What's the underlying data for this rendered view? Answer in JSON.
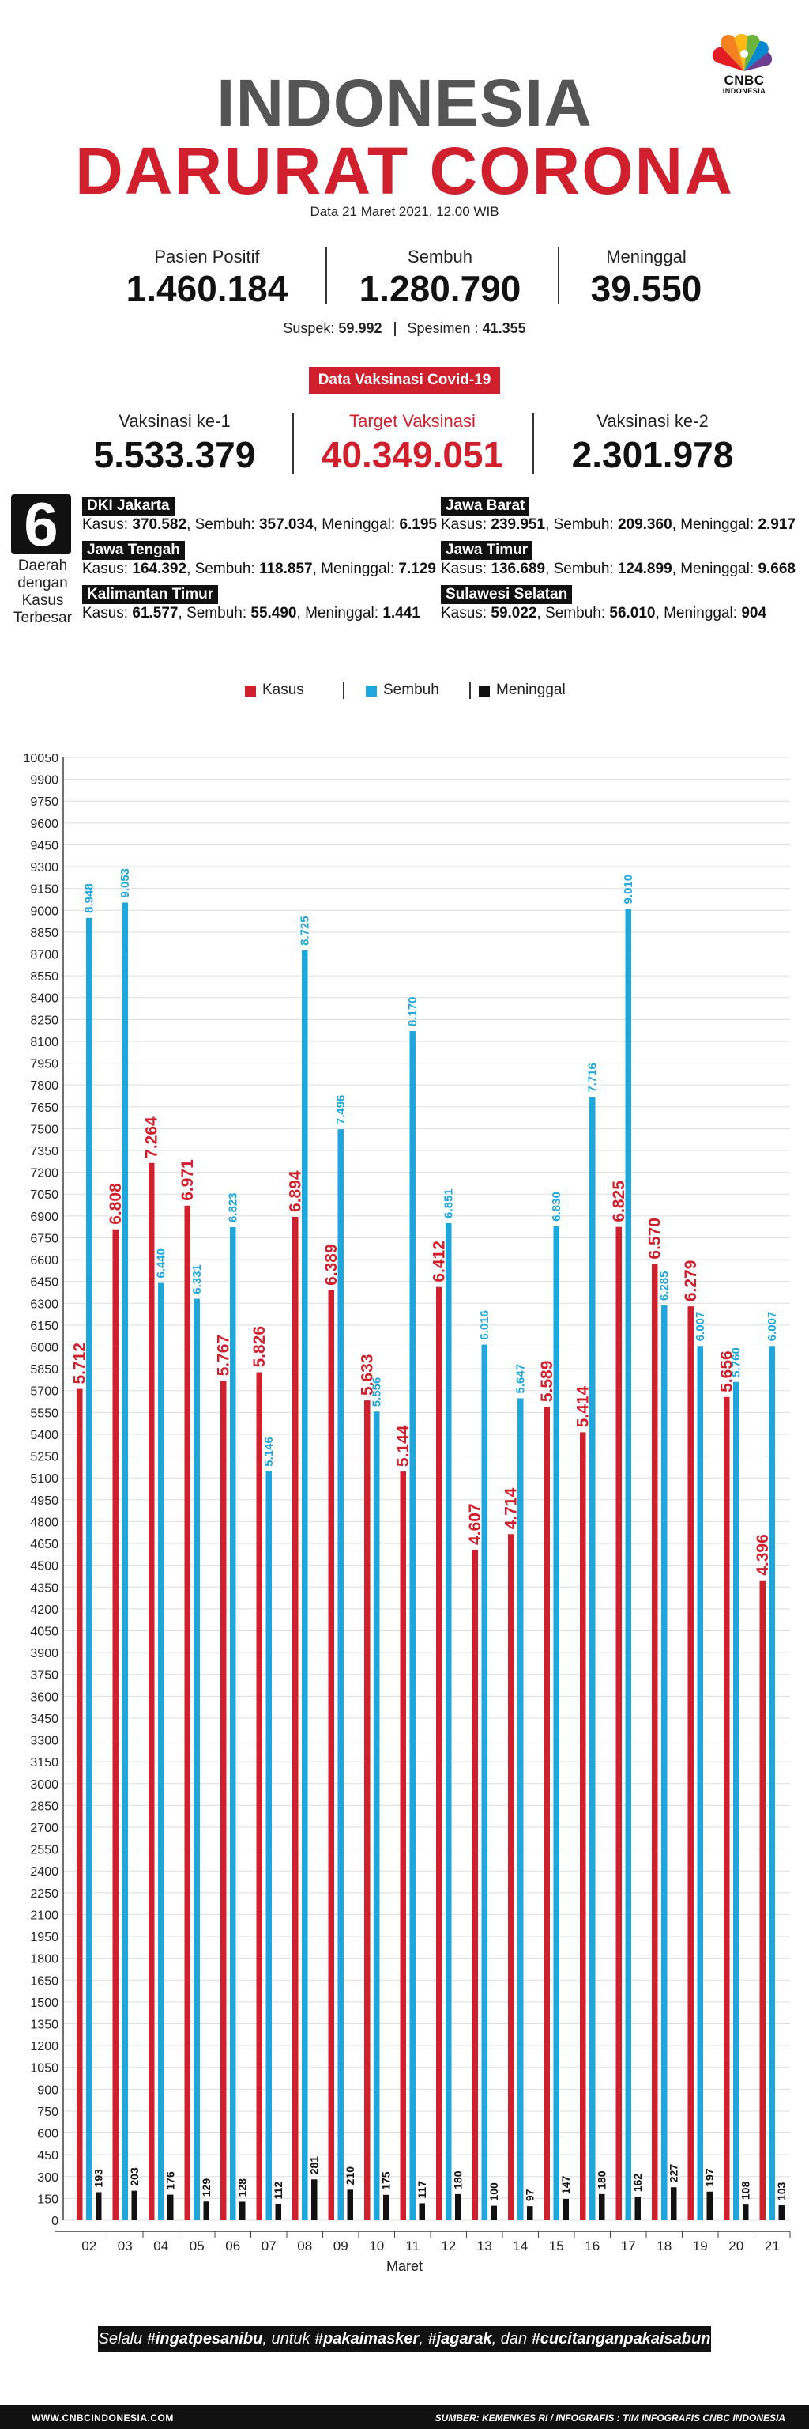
{
  "logo": {
    "name": "CNBC",
    "sub": "INDONESIA"
  },
  "title_line1": "INDONESIA",
  "title_line2": "DARURAT CORONA",
  "date": "Data 21 Maret 2021, 12.00 WIB",
  "stats": [
    {
      "label": "Pasien Positif",
      "value": "1.460.184"
    },
    {
      "label": "Sembuh",
      "value": "1.280.790"
    },
    {
      "label": "Meninggal",
      "value": "39.550"
    }
  ],
  "suspek": {
    "label": "Suspek:",
    "value": "59.992",
    "spesimen_label": "Spesimen :",
    "spesimen_value": "41.355"
  },
  "vaksin": {
    "badge": "Data Vaksinasi Covid-19",
    "items": [
      {
        "label": "Vaksinasi ke-1",
        "value": "5.533.379"
      },
      {
        "label": "Target Vaksinasi",
        "value": "40.349.051"
      },
      {
        "label": "Vaksinasi ke-2",
        "value": "2.301.978"
      }
    ]
  },
  "regions": {
    "count": "6",
    "caption": [
      "Daerah",
      "dengan",
      "Kasus",
      "Terbesar"
    ],
    "items": [
      {
        "name": "DKI Jakarta",
        "kasus": "370.582",
        "sembuh": "357.034",
        "meninggal": "6.195"
      },
      {
        "name": "Jawa Barat",
        "kasus": "239.951",
        "sembuh": "209.360",
        "meninggal": "2.917"
      },
      {
        "name": "Jawa Tengah",
        "kasus": "164.392",
        "sembuh": "118.857",
        "meninggal": "7.129"
      },
      {
        "name": "Jawa Timur",
        "kasus": "136.689",
        "sembuh": "124.899",
        "meninggal": "9.668"
      },
      {
        "name": "Kalimantan Timur",
        "kasus": "61.577",
        "sembuh": "55.490",
        "meninggal": "1.441"
      },
      {
        "name": "Sulawesi Selatan",
        "kasus": "59.022",
        "sembuh": "56.010",
        "meninggal": "904"
      }
    ],
    "labels": {
      "kasus": "Kasus:",
      "sembuh": "Sembuh:",
      "meninggal": "Meninggal:"
    }
  },
  "colors": {
    "kasus": "#d0202d",
    "sembuh": "#1ea7dc",
    "meninggal": "#111111"
  },
  "chart_data": {
    "type": "bar",
    "categories": [
      "02",
      "03",
      "04",
      "05",
      "06",
      "07",
      "08",
      "09",
      "10",
      "11",
      "12",
      "13",
      "14",
      "15",
      "16",
      "17",
      "18",
      "19",
      "20",
      "21"
    ],
    "series": [
      {
        "name": "Kasus",
        "values": [
          5712,
          6808,
          7264,
          6971,
          5767,
          5826,
          6894,
          6389,
          5633,
          5144,
          6412,
          4607,
          4714,
          5589,
          5414,
          6825,
          6570,
          6279,
          5656,
          4396
        ],
        "labels": [
          "5.712",
          "6.808",
          "7.264",
          "6.971",
          "5.767",
          "5.826",
          "6.894",
          "6.389",
          "5.633",
          "5.144",
          "6.412",
          "4.607",
          "4.714",
          "5.589",
          "5.414",
          "6.825",
          "6.570",
          "6.279",
          "5.656",
          "4.396"
        ]
      },
      {
        "name": "Sembuh",
        "values": [
          8948,
          9053,
          6440,
          6331,
          6823,
          5146,
          8725,
          7496,
          5556,
          8170,
          6851,
          6016,
          5647,
          6830,
          7716,
          9010,
          6285,
          6007,
          5760,
          6007
        ],
        "labels": [
          "8.948",
          "9.053",
          "6.440",
          "6.331",
          "6.823",
          "5.146",
          "8.725",
          "7.496",
          "5.556",
          "8.170",
          "6.851",
          "6.016",
          "5.647",
          "6.830",
          "7.716",
          "9.010",
          "6.285",
          "6.007",
          "5.760",
          "6.007"
        ]
      },
      {
        "name": "Meninggal",
        "values": [
          193,
          203,
          176,
          129,
          128,
          112,
          281,
          210,
          175,
          117,
          180,
          100,
          97,
          147,
          180,
          162,
          227,
          197,
          108,
          103
        ],
        "labels": [
          "193",
          "203",
          "176",
          "129",
          "128",
          "112",
          "281",
          "210",
          "175",
          "117",
          "180",
          "100",
          "97",
          "147",
          "180",
          "162",
          "227",
          "197",
          "108",
          "103"
        ]
      }
    ],
    "xlabel": "Maret",
    "ylabel": "",
    "ylim": [
      0,
      10050
    ],
    "ytick_step": 150,
    "grid": true,
    "legend": "top-center"
  },
  "slogan": {
    "pre": "Selalu ",
    "tag1": "#ingatpesanibu",
    "mid1": ", untuk ",
    "tag2": "#pakaimasker",
    "mid2": ", ",
    "tag3": "#jagarak",
    "mid3": ", dan ",
    "tag4": "#cucitanganpakaisabun"
  },
  "footer": {
    "left": "WWW.CNBCINDONESIA.COM",
    "right": "SUMBER: KEMENKES RI / INFOGRAFIS : TIM INFOGRAFIS CNBC INDONESIA"
  }
}
